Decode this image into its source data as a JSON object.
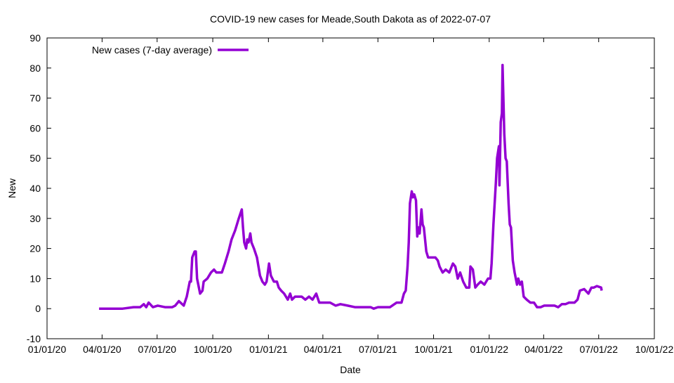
{
  "chart_data": {
    "type": "line",
    "title": "COVID-19 new cases for Meade,South Dakota as of 2022-07-07",
    "xlabel": "Date",
    "ylabel": "New",
    "x_units": "days since 01/01/20",
    "xlim": [
      0,
      1004
    ],
    "ylim": [
      -10,
      90
    ],
    "yticks": [
      -10,
      0,
      10,
      20,
      30,
      40,
      50,
      60,
      70,
      80,
      90
    ],
    "xticks": [
      {
        "day": 0,
        "label": "01/01/20"
      },
      {
        "day": 91,
        "label": "04/01/20"
      },
      {
        "day": 182,
        "label": "07/01/20"
      },
      {
        "day": 274,
        "label": "10/01/20"
      },
      {
        "day": 366,
        "label": "01/01/21"
      },
      {
        "day": 456,
        "label": "04/01/21"
      },
      {
        "day": 547,
        "label": "07/01/21"
      },
      {
        "day": 639,
        "label": "10/01/21"
      },
      {
        "day": 731,
        "label": "01/01/22"
      },
      {
        "day": 821,
        "label": "04/01/22"
      },
      {
        "day": 912,
        "label": "07/01/22"
      },
      {
        "day": 1004,
        "label": "10/01/22"
      }
    ],
    "grid": false,
    "legend_position": "top-left",
    "series": [
      {
        "name": "New cases (7-day average)",
        "color": "#9400d3",
        "x": [
          86,
          125,
          143,
          154,
          160,
          164,
          168,
          175,
          183,
          195,
          207,
          212,
          218,
          226,
          231,
          236,
          238,
          240,
          244,
          246,
          248,
          253,
          257,
          259,
          265,
          271,
          276,
          280,
          284,
          289,
          294,
          300,
          305,
          311,
          317,
          322,
          324,
          326,
          329,
          331,
          333,
          336,
          338,
          342,
          347,
          352,
          356,
          360,
          363,
          367,
          370,
          375,
          380,
          383,
          387,
          392,
          398,
          402,
          405,
          410,
          416,
          421,
          427,
          433,
          439,
          445,
          450,
          456,
          468,
          477,
          485,
          497,
          509,
          520,
          535,
          540,
          547,
          567,
          578,
          586,
          590,
          593,
          596,
          598,
          600,
          603,
          605,
          607,
          610,
          612,
          614,
          616,
          619,
          621,
          623,
          627,
          630,
          636,
          642,
          646,
          649,
          654,
          659,
          665,
          671,
          675,
          679,
          683,
          688,
          693,
          698,
          700,
          704,
          708,
          712,
          717,
          723,
          729,
          733,
          735,
          738,
          742,
          744,
          747,
          748,
          750,
          752,
          753,
          756,
          758,
          760,
          763,
          765,
          767,
          770,
          773,
          777,
          779,
          782,
          785,
          788,
          793,
          799,
          805,
          810,
          816,
          822,
          839,
          845,
          851,
          857,
          863,
          872,
          877,
          881,
          888,
          895,
          900,
          904,
          909,
          916,
          917
        ],
        "y": [
          0,
          0,
          0.5,
          0.5,
          1.5,
          0.5,
          2,
          0.5,
          1,
          0.5,
          0.5,
          1,
          2.5,
          1,
          4,
          9,
          9,
          17,
          19,
          19,
          10,
          5,
          6,
          9,
          10,
          12,
          13,
          12,
          12,
          12,
          15,
          19,
          23,
          26,
          30,
          33,
          27,
          22,
          20,
          23,
          22,
          25,
          22,
          20,
          17,
          11,
          9,
          8,
          9,
          15,
          11,
          9,
          9,
          7,
          6,
          5,
          3,
          5,
          3,
          4,
          4,
          4,
          3,
          4,
          3,
          5,
          2,
          2,
          2,
          1,
          1.5,
          1,
          0.5,
          0.5,
          0.5,
          0,
          0.5,
          0.5,
          2,
          2,
          5,
          6,
          14,
          22,
          35,
          39,
          37,
          38,
          36,
          24,
          27,
          25,
          33,
          28,
          27,
          19,
          17,
          17,
          17,
          16,
          14,
          12,
          13,
          12,
          15,
          14,
          10,
          12,
          9,
          7,
          7,
          14,
          13,
          7,
          8,
          9,
          8,
          10,
          10,
          15,
          28,
          42,
          50,
          54,
          41,
          62,
          65,
          81,
          58,
          50,
          49,
          35,
          28,
          27,
          16,
          12,
          8,
          10,
          8,
          9,
          4,
          3,
          2,
          2,
          0.5,
          0.5,
          1,
          1,
          0.5,
          1.5,
          1.5,
          2,
          2,
          3,
          6,
          6.5,
          5,
          7,
          7,
          7.5,
          7,
          6
        ]
      }
    ]
  }
}
